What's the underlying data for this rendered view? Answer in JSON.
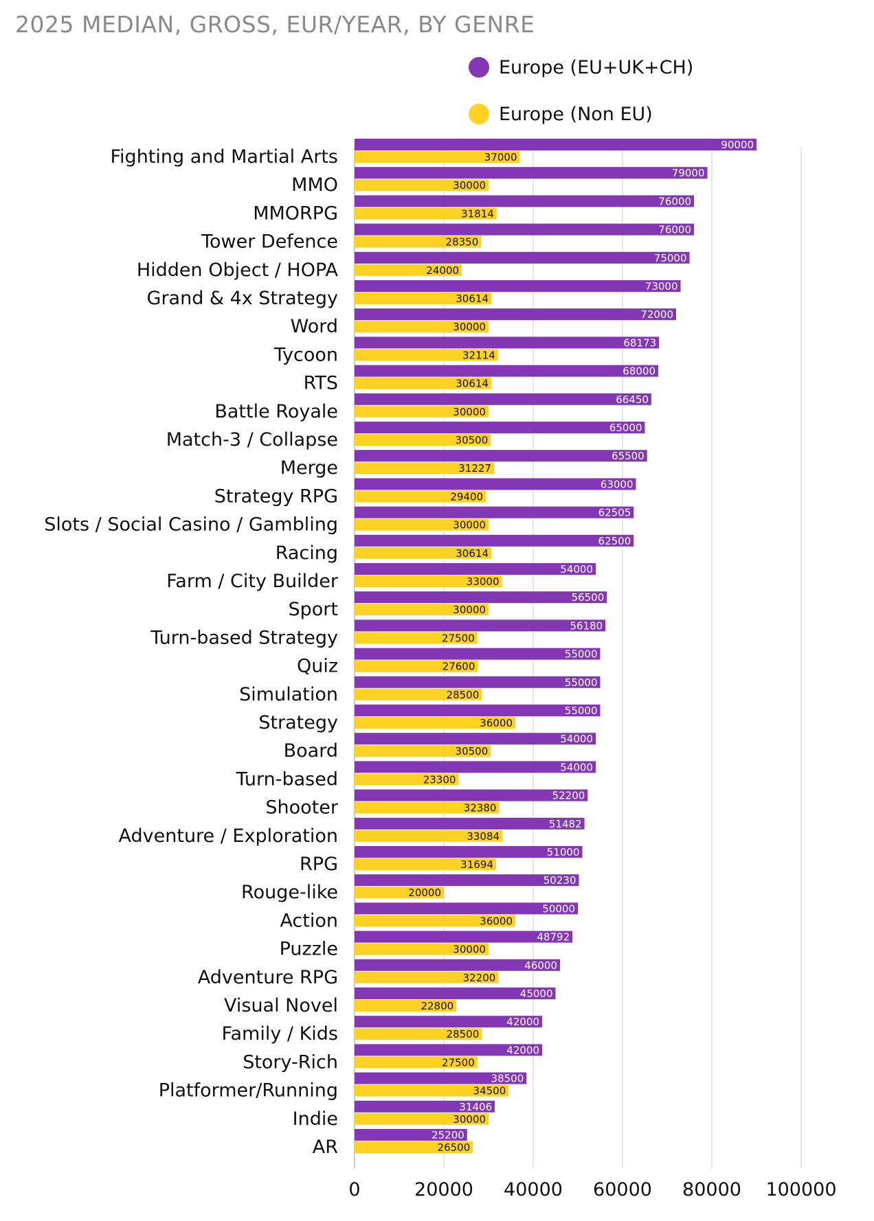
{
  "chart_data": {
    "type": "bar",
    "orientation": "horizontal",
    "title": "2025 MEDIAN, GROSS, EUR/YEAR, BY GENRE",
    "xlabel": "",
    "ylabel": "",
    "xlim": [
      0,
      100000
    ],
    "xticks": [
      "0",
      "20000",
      "40000",
      "60000",
      "80000",
      "100000"
    ],
    "legend_position": "top-right",
    "grid": true,
    "categories": [
      "Fighting and Martial Arts",
      "MMO",
      "MMORPG",
      "Tower Defence",
      "Hidden Object / HOPA",
      "Grand & 4x Strategy",
      "Word",
      "Tycoon",
      "RTS",
      "Battle Royale",
      "Match-3 / Collapse",
      "Merge",
      "Strategy RPG",
      "Slots / Social Casino / Gambling",
      "Racing",
      "Farm / City Builder",
      "Sport",
      "Turn-based Strategy",
      "Quiz",
      "Simulation",
      "Strategy",
      "Board",
      "Turn-based",
      "Shooter",
      "Adventure / Exploration",
      "RPG",
      "Rouge-like",
      "Action",
      "Puzzle",
      "Adventure RPG",
      "Visual Novel",
      "Family / Kids",
      "Story-Rich",
      "Platformer/Running",
      "Indie",
      "AR"
    ],
    "series": [
      {
        "name": "Europe (EU+UK+CH)",
        "color": "#8437b5",
        "label_color": "#ffffff",
        "values": [
          90000,
          79000,
          76000,
          76000,
          75000,
          73000,
          72000,
          68173,
          68000,
          66450,
          65000,
          65500,
          63000,
          62505,
          62500,
          54000,
          56500,
          56180,
          55000,
          55000,
          55000,
          54000,
          54000,
          52200,
          51482,
          51000,
          50230,
          50000,
          48792,
          46000,
          45000,
          42000,
          42000,
          38500,
          31406,
          25200
        ]
      },
      {
        "name": "Europe (Non EU)",
        "color": "#fdd224",
        "label_color": "#111111",
        "values": [
          37000,
          30000,
          31814,
          28350,
          24000,
          30614,
          30000,
          32114,
          30614,
          30000,
          30500,
          31227,
          29400,
          30000,
          30614,
          33000,
          30000,
          27500,
          27600,
          28500,
          36000,
          30500,
          23300,
          32380,
          33084,
          31694,
          20000,
          36000,
          30000,
          32200,
          22800,
          28500,
          27500,
          34500,
          30000,
          26500
        ]
      }
    ]
  }
}
